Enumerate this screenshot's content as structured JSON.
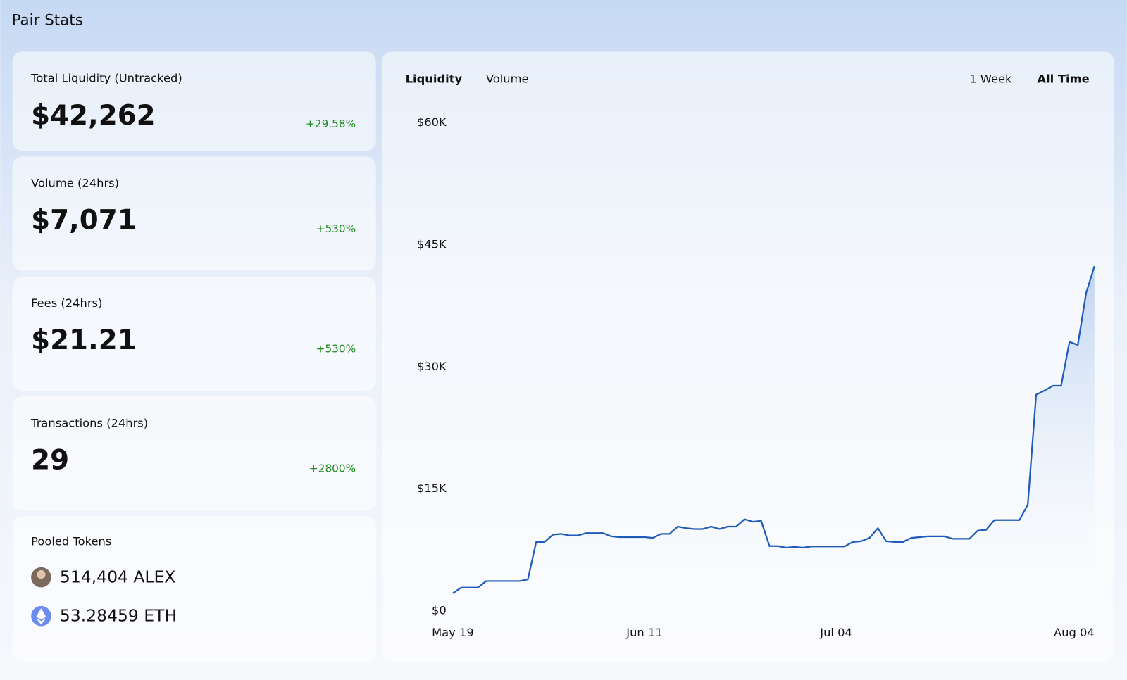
{
  "header": {
    "title": "Pair Stats"
  },
  "stats": [
    {
      "label": "Total Liquidity (Untracked)",
      "value": "$42,262",
      "change": "+29.58%"
    },
    {
      "label": "Volume (24hrs)",
      "value": "$7,071",
      "change": "+530%"
    },
    {
      "label": "Fees (24hrs)",
      "value": "$21.21",
      "change": "+530%"
    },
    {
      "label": "Transactions (24hrs)",
      "value": "29",
      "change": "+2800%"
    }
  ],
  "pooled_tokens": {
    "label": "Pooled Tokens",
    "tokens": [
      "514,404 ALEX",
      "53.28459 ETH"
    ]
  },
  "chart_tabs": [
    "Liquidity",
    "Volume"
  ],
  "range_tabs": [
    "1 Week",
    "All Time"
  ],
  "chart_data": {
    "type": "area",
    "color": "#1f5bb8",
    "categories": [
      "May 19",
      null,
      null,
      null,
      null,
      null,
      null,
      null,
      null,
      null,
      null,
      null,
      null,
      null,
      null,
      null,
      null,
      null,
      null,
      null,
      null,
      null,
      null,
      "Jun 11",
      null,
      null,
      null,
      null,
      null,
      null,
      null,
      null,
      null,
      null,
      null,
      null,
      null,
      null,
      null,
      null,
      null,
      null,
      null,
      null,
      null,
      null,
      "Jul 04",
      null,
      null,
      null,
      null,
      null,
      null,
      null,
      null,
      null,
      null,
      null,
      null,
      null,
      null,
      null,
      null,
      null,
      null,
      null,
      null,
      null,
      null,
      null,
      null,
      null,
      null,
      null,
      null,
      null,
      null,
      "Aug 04"
    ],
    "values": [
      2100,
      2800,
      2800,
      2800,
      3600,
      3600,
      3600,
      3600,
      3600,
      3800,
      8400,
      8400,
      9300,
      9400,
      9200,
      9200,
      9500,
      9500,
      9500,
      9100,
      9000,
      9000,
      9000,
      9000,
      8900,
      9400,
      9400,
      10300,
      10100,
      10000,
      10000,
      10300,
      10000,
      10300,
      10300,
      11200,
      10900,
      11000,
      7900,
      7900,
      7700,
      7800,
      7700,
      7850,
      7850,
      7850,
      7850,
      7850,
      8400,
      8500,
      8900,
      10100,
      8500,
      8400,
      8400,
      8900,
      9000,
      9100,
      9100,
      9100,
      8800,
      8800,
      8800,
      9800,
      9900,
      11100,
      11100,
      11100,
      11100,
      13000,
      26500,
      27000,
      27600,
      27600,
      33000,
      32600,
      39000,
      42300
    ],
    "ylim": [
      0,
      60000
    ],
    "yticks": [
      {
        "value": 0,
        "label": "$0"
      },
      {
        "value": 15000,
        "label": "$15K"
      },
      {
        "value": 30000,
        "label": "$30K"
      },
      {
        "value": 45000,
        "label": "$45K"
      },
      {
        "value": 60000,
        "label": "$60K"
      }
    ]
  }
}
